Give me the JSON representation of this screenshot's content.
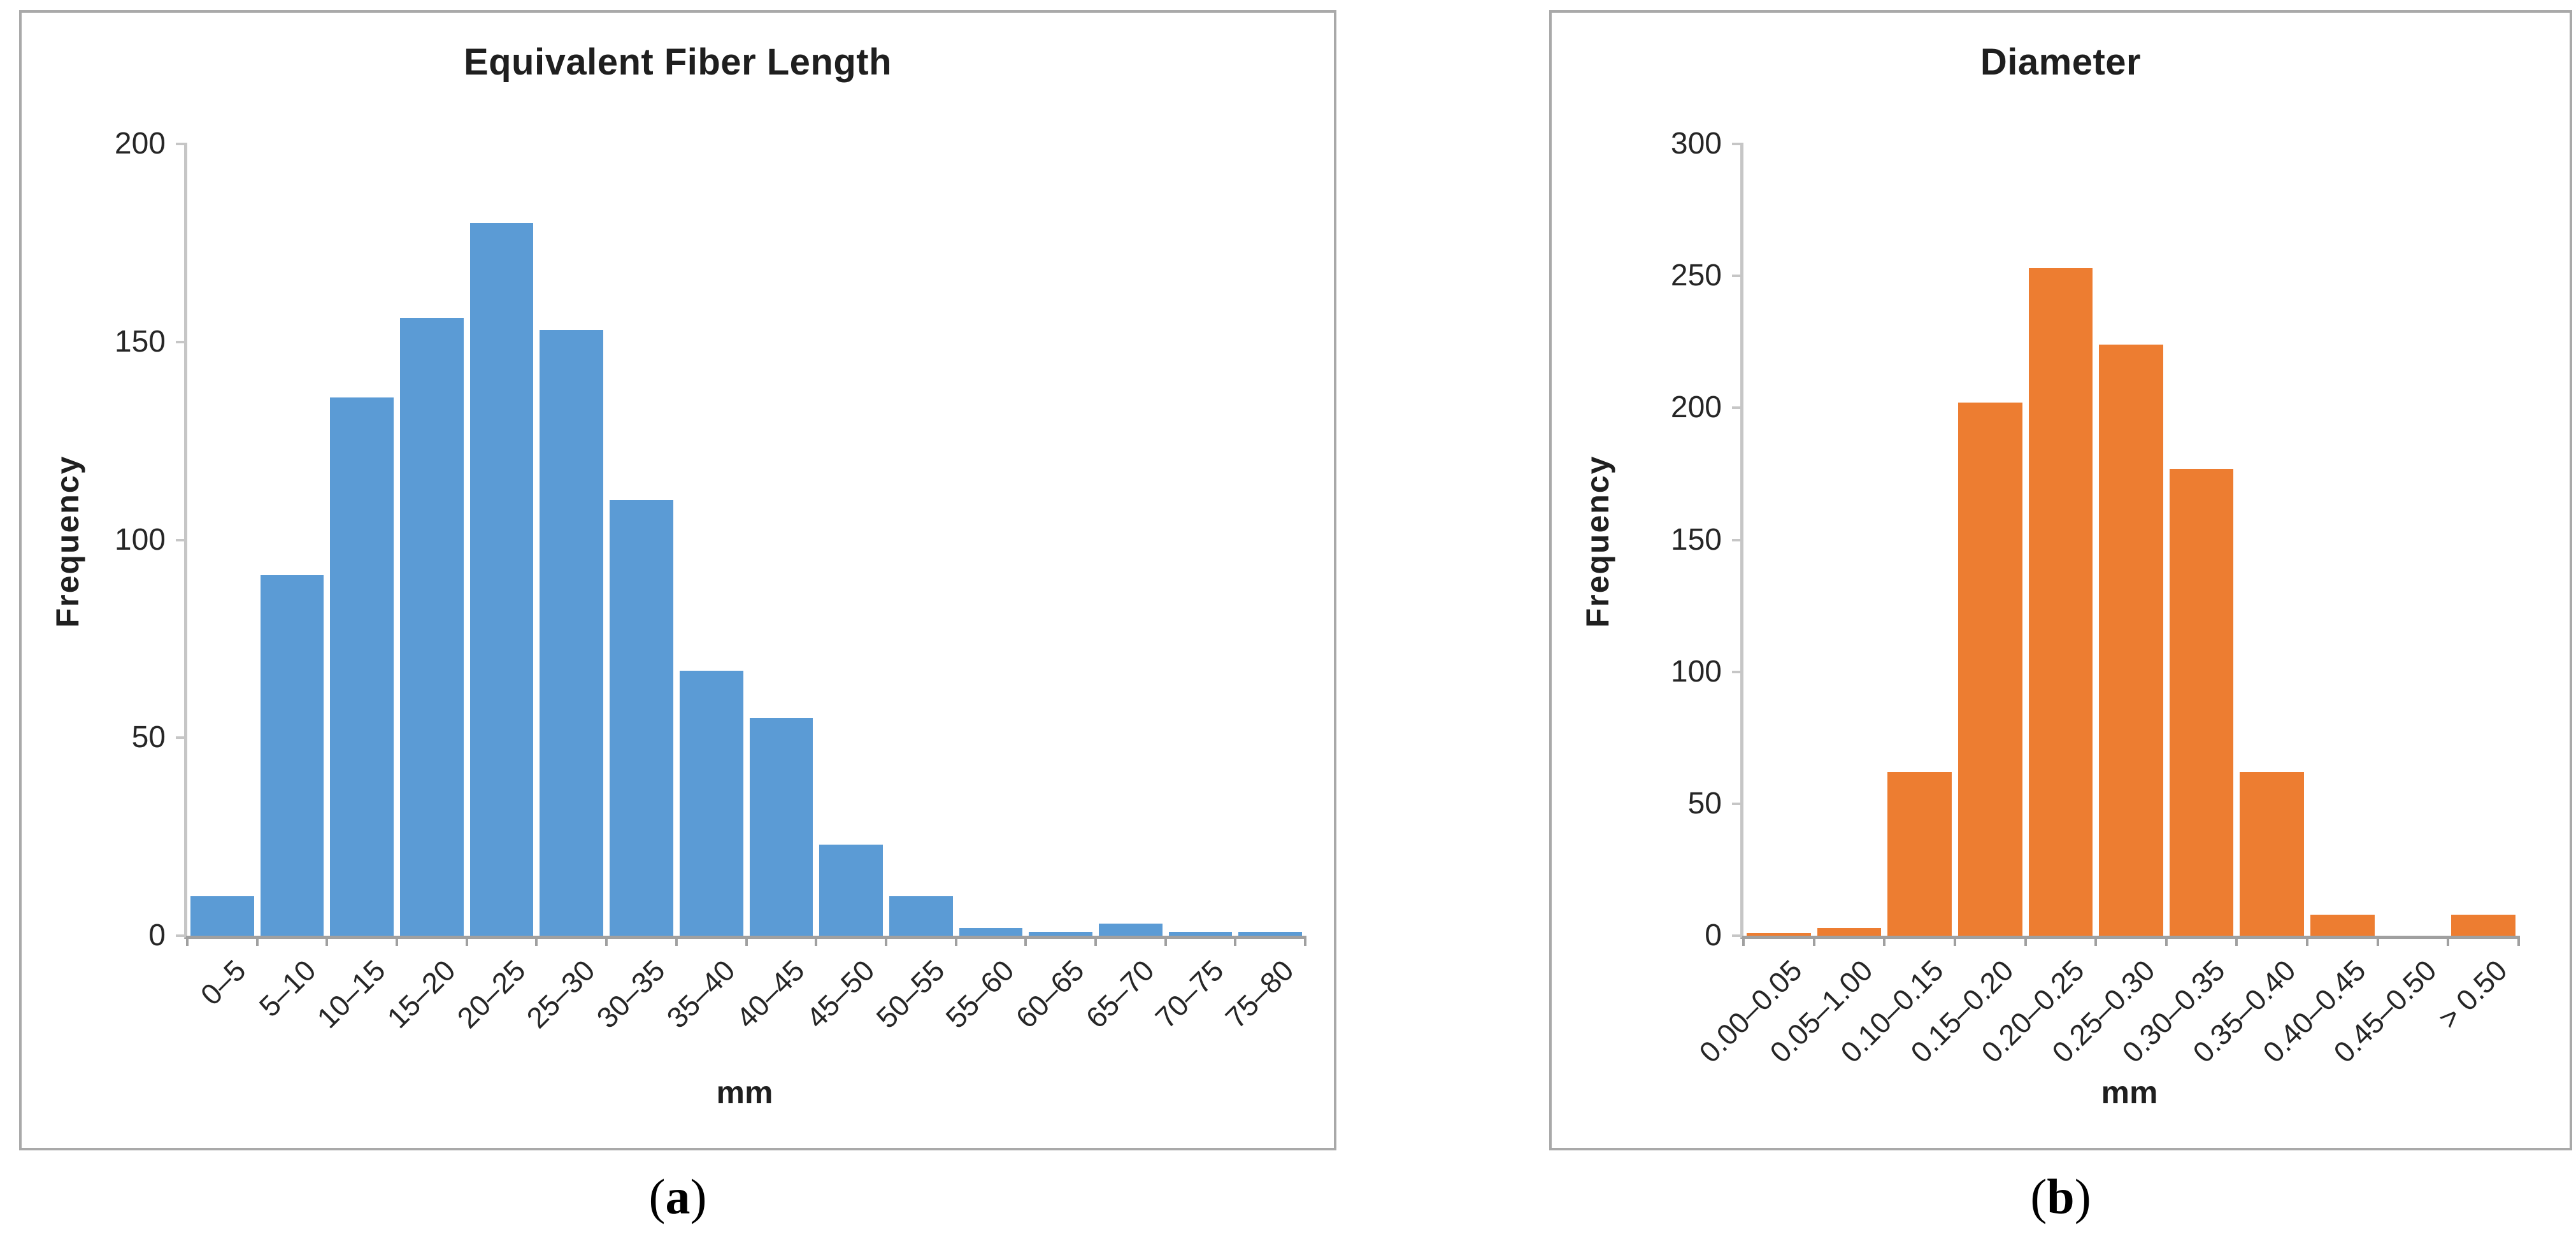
{
  "chart_data": [
    {
      "type": "bar",
      "title": "Equivalent Fiber Length",
      "xlabel": "mm",
      "ylabel": "Frequency",
      "ylim": [
        0,
        200
      ],
      "yticks": [
        0,
        50,
        100,
        150,
        200
      ],
      "grid": false,
      "legend": false,
      "bar_color": "#5B9BD5",
      "categories": [
        "0–5",
        "5–10",
        "10–15",
        "15–20",
        "20–25",
        "25–30",
        "30–35",
        "35–40",
        "40–45",
        "45–50",
        "50–55",
        "55–60",
        "60–65",
        "65–70",
        "70–75",
        "75–80"
      ],
      "values": [
        10,
        91,
        136,
        156,
        180,
        153,
        110,
        67,
        55,
        23,
        10,
        2,
        1,
        3,
        1,
        1
      ],
      "caption": {
        "pre": "(",
        "letter": "a",
        "post": ")"
      }
    },
    {
      "type": "bar",
      "title": "Diameter",
      "xlabel": "mm",
      "ylabel": "Frequency",
      "ylim": [
        0,
        300
      ],
      "yticks": [
        0,
        50,
        100,
        150,
        200,
        250,
        300
      ],
      "grid": false,
      "legend": false,
      "bar_color": "#ED7D31",
      "categories": [
        "0.00–0.05",
        "0.05–1.00",
        "0.10–0.15",
        "0.15–0.20",
        "0.20–0.25",
        "0.25–0.30",
        "0.30–0.35",
        "0.35–0.40",
        "0.40–0.45",
        "0.45–0.50",
        "> 0.50"
      ],
      "values": [
        1,
        3,
        62,
        202,
        253,
        224,
        177,
        62,
        8,
        0,
        8
      ],
      "caption": {
        "pre": "(",
        "letter": "b",
        "post": ")"
      }
    }
  ]
}
